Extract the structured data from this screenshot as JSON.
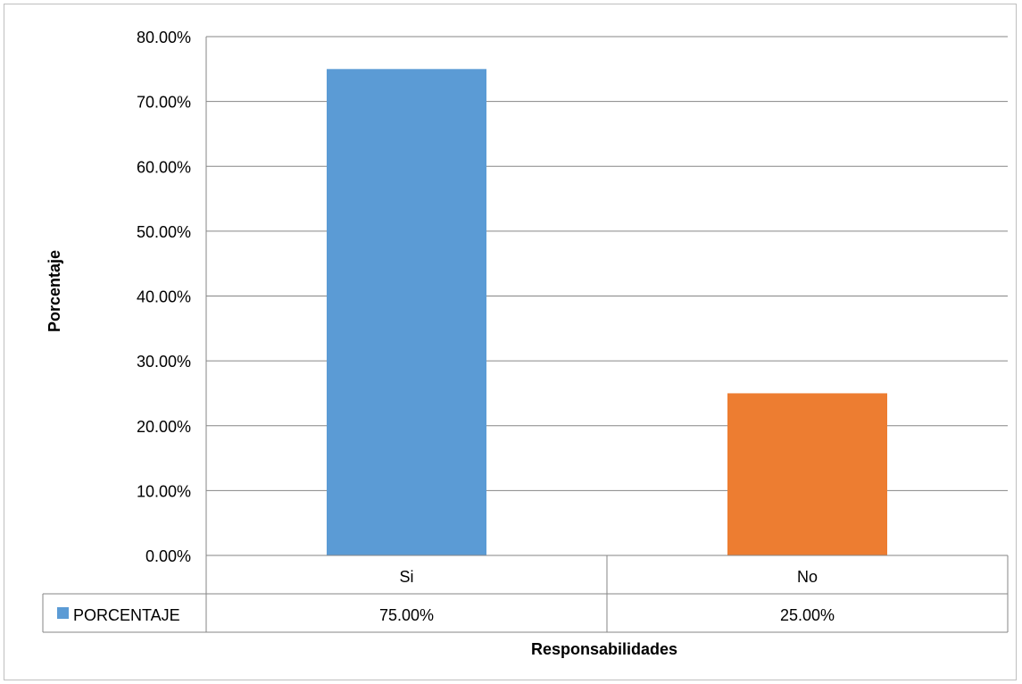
{
  "chart_data": {
    "type": "bar",
    "categories": [
      "Si",
      "No"
    ],
    "series": [
      {
        "name": "PORCENTAJE",
        "values": [
          0.75,
          0.25
        ],
        "labels": [
          "75.00%",
          "25.00%"
        ]
      }
    ],
    "bar_colors": [
      "#5b9bd5",
      "#ed7d31"
    ],
    "legend_color": "#5b9bd5",
    "ylim": [
      0,
      0.8
    ],
    "ytick_values": [
      0,
      0.1,
      0.2,
      0.3,
      0.4,
      0.5,
      0.6,
      0.7,
      0.8
    ],
    "ytick_labels": [
      "0.00%",
      "10.00%",
      "20.00%",
      "30.00%",
      "40.00%",
      "50.00%",
      "60.00%",
      "70.00%",
      "80.00%"
    ],
    "xlabel": "Responsabilidades",
    "ylabel": "Porcentaje",
    "grid": true,
    "data_table": true,
    "gridline_color": "#868686"
  }
}
